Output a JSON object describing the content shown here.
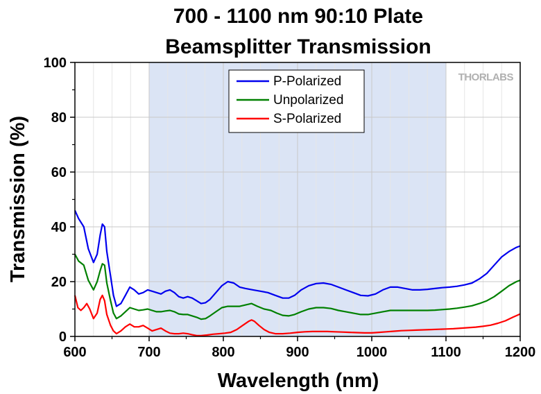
{
  "chart_data": {
    "type": "line",
    "title_line1": "700 - 1100 nm 90:10 Plate",
    "title_line2": "Beamsplitter Transmission",
    "xlabel": "Wavelength (nm)",
    "ylabel": "Transmission (%)",
    "xlim": [
      600,
      1200
    ],
    "ylim": [
      0,
      100
    ],
    "xticks": [
      600,
      700,
      800,
      900,
      1000,
      1100,
      1200
    ],
    "yticks": [
      0,
      20,
      40,
      60,
      80,
      100
    ],
    "grid": true,
    "highlight_band": {
      "from": 700,
      "to": 1100,
      "color": "#dbe4f5"
    },
    "legend_position": "top-center",
    "watermark": "THORLABS",
    "series": [
      {
        "name": "P-Polarized",
        "color": "#0000ee",
        "points": [
          [
            600,
            46
          ],
          [
            605,
            43
          ],
          [
            612,
            40
          ],
          [
            618,
            32
          ],
          [
            625,
            27
          ],
          [
            630,
            30
          ],
          [
            634,
            37
          ],
          [
            637,
            41
          ],
          [
            640,
            40
          ],
          [
            643,
            31
          ],
          [
            648,
            22
          ],
          [
            652,
            15
          ],
          [
            656,
            11
          ],
          [
            662,
            12
          ],
          [
            668,
            15
          ],
          [
            674,
            18
          ],
          [
            680,
            17
          ],
          [
            686,
            15.5
          ],
          [
            692,
            16
          ],
          [
            698,
            17
          ],
          [
            704,
            16.5
          ],
          [
            710,
            16
          ],
          [
            716,
            15.5
          ],
          [
            722,
            16.5
          ],
          [
            728,
            17
          ],
          [
            734,
            16
          ],
          [
            740,
            14.5
          ],
          [
            746,
            14
          ],
          [
            752,
            14.5
          ],
          [
            758,
            14
          ],
          [
            764,
            13
          ],
          [
            770,
            12
          ],
          [
            776,
            12.3
          ],
          [
            782,
            13.5
          ],
          [
            790,
            16
          ],
          [
            798,
            18.5
          ],
          [
            806,
            20
          ],
          [
            814,
            19.5
          ],
          [
            822,
            18
          ],
          [
            830,
            17.5
          ],
          [
            840,
            17
          ],
          [
            850,
            16.5
          ],
          [
            860,
            16
          ],
          [
            870,
            15
          ],
          [
            880,
            14
          ],
          [
            888,
            14
          ],
          [
            896,
            15
          ],
          [
            905,
            17
          ],
          [
            915,
            18.5
          ],
          [
            925,
            19.3
          ],
          [
            935,
            19.5
          ],
          [
            945,
            19
          ],
          [
            955,
            18
          ],
          [
            965,
            17
          ],
          [
            975,
            16
          ],
          [
            985,
            15
          ],
          [
            995,
            14.8
          ],
          [
            1005,
            15.5
          ],
          [
            1015,
            17
          ],
          [
            1025,
            18
          ],
          [
            1035,
            18
          ],
          [
            1045,
            17.5
          ],
          [
            1055,
            17
          ],
          [
            1065,
            17
          ],
          [
            1075,
            17.2
          ],
          [
            1085,
            17.5
          ],
          [
            1095,
            17.8
          ],
          [
            1105,
            18
          ],
          [
            1115,
            18.3
          ],
          [
            1125,
            18.8
          ],
          [
            1135,
            19.5
          ],
          [
            1145,
            21
          ],
          [
            1155,
            23
          ],
          [
            1165,
            26
          ],
          [
            1175,
            29
          ],
          [
            1185,
            31
          ],
          [
            1195,
            32.5
          ],
          [
            1200,
            33
          ]
        ]
      },
      {
        "name": "Unpolarized",
        "color": "#008000",
        "points": [
          [
            600,
            30
          ],
          [
            605,
            27.5
          ],
          [
            612,
            26
          ],
          [
            618,
            20.5
          ],
          [
            625,
            17
          ],
          [
            630,
            20
          ],
          [
            634,
            24
          ],
          [
            637,
            26.5
          ],
          [
            640,
            26
          ],
          [
            643,
            19.5
          ],
          [
            648,
            13
          ],
          [
            652,
            8.5
          ],
          [
            656,
            6.5
          ],
          [
            662,
            7.5
          ],
          [
            668,
            9
          ],
          [
            674,
            10.5
          ],
          [
            680,
            10
          ],
          [
            686,
            9.5
          ],
          [
            692,
            9.7
          ],
          [
            698,
            10
          ],
          [
            704,
            9.5
          ],
          [
            710,
            9
          ],
          [
            716,
            9
          ],
          [
            722,
            9.3
          ],
          [
            728,
            9.5
          ],
          [
            734,
            9
          ],
          [
            740,
            8.2
          ],
          [
            746,
            8
          ],
          [
            752,
            8
          ],
          [
            758,
            7.5
          ],
          [
            764,
            7
          ],
          [
            770,
            6.3
          ],
          [
            776,
            6.5
          ],
          [
            782,
            7.5
          ],
          [
            790,
            9
          ],
          [
            798,
            10.5
          ],
          [
            806,
            11
          ],
          [
            814,
            11
          ],
          [
            822,
            11
          ],
          [
            830,
            11.5
          ],
          [
            838,
            12
          ],
          [
            846,
            11
          ],
          [
            855,
            10
          ],
          [
            864,
            9.5
          ],
          [
            872,
            8.5
          ],
          [
            880,
            7.7
          ],
          [
            888,
            7.5
          ],
          [
            896,
            8
          ],
          [
            905,
            9
          ],
          [
            915,
            10
          ],
          [
            925,
            10.5
          ],
          [
            935,
            10.5
          ],
          [
            945,
            10.2
          ],
          [
            955,
            9.5
          ],
          [
            965,
            9
          ],
          [
            975,
            8.5
          ],
          [
            985,
            8
          ],
          [
            995,
            8
          ],
          [
            1005,
            8.5
          ],
          [
            1015,
            9
          ],
          [
            1025,
            9.5
          ],
          [
            1035,
            9.5
          ],
          [
            1045,
            9.5
          ],
          [
            1055,
            9.5
          ],
          [
            1065,
            9.5
          ],
          [
            1075,
            9.5
          ],
          [
            1085,
            9.6
          ],
          [
            1095,
            9.8
          ],
          [
            1105,
            10
          ],
          [
            1115,
            10.3
          ],
          [
            1125,
            10.7
          ],
          [
            1135,
            11.2
          ],
          [
            1145,
            12
          ],
          [
            1155,
            13
          ],
          [
            1165,
            14.5
          ],
          [
            1175,
            16.5
          ],
          [
            1185,
            18.5
          ],
          [
            1195,
            20
          ],
          [
            1200,
            20.5
          ]
        ]
      },
      {
        "name": "S-Polarized",
        "color": "#ff0000",
        "points": [
          [
            600,
            15
          ],
          [
            604,
            10.5
          ],
          [
            608,
            9.5
          ],
          [
            612,
            10.5
          ],
          [
            616,
            12
          ],
          [
            620,
            10
          ],
          [
            625,
            6.5
          ],
          [
            630,
            8.5
          ],
          [
            634,
            13.5
          ],
          [
            637,
            15
          ],
          [
            640,
            13
          ],
          [
            643,
            8
          ],
          [
            648,
            4
          ],
          [
            652,
            2
          ],
          [
            656,
            1
          ],
          [
            662,
            2
          ],
          [
            668,
            3.5
          ],
          [
            674,
            4.5
          ],
          [
            680,
            3.5
          ],
          [
            686,
            3.5
          ],
          [
            692,
            4
          ],
          [
            698,
            3
          ],
          [
            704,
            2
          ],
          [
            710,
            2.5
          ],
          [
            716,
            3
          ],
          [
            722,
            2
          ],
          [
            728,
            1.2
          ],
          [
            734,
            1
          ],
          [
            740,
            1
          ],
          [
            746,
            1.2
          ],
          [
            752,
            1
          ],
          [
            758,
            0.6
          ],
          [
            764,
            0.3
          ],
          [
            770,
            0.3
          ],
          [
            778,
            0.5
          ],
          [
            786,
            0.8
          ],
          [
            794,
            1
          ],
          [
            802,
            1.2
          ],
          [
            810,
            1.5
          ],
          [
            818,
            2.5
          ],
          [
            826,
            4
          ],
          [
            834,
            5.5
          ],
          [
            838,
            6
          ],
          [
            842,
            5.5
          ],
          [
            848,
            4
          ],
          [
            855,
            2.5
          ],
          [
            862,
            1.5
          ],
          [
            870,
            1
          ],
          [
            880,
            1
          ],
          [
            890,
            1.2
          ],
          [
            900,
            1.5
          ],
          [
            910,
            1.7
          ],
          [
            920,
            1.8
          ],
          [
            930,
            1.8
          ],
          [
            940,
            1.8
          ],
          [
            950,
            1.7
          ],
          [
            960,
            1.6
          ],
          [
            970,
            1.5
          ],
          [
            980,
            1.4
          ],
          [
            990,
            1.3
          ],
          [
            1000,
            1.3
          ],
          [
            1010,
            1.5
          ],
          [
            1020,
            1.7
          ],
          [
            1030,
            1.9
          ],
          [
            1040,
            2.1
          ],
          [
            1050,
            2.2
          ],
          [
            1060,
            2.3
          ],
          [
            1070,
            2.4
          ],
          [
            1080,
            2.5
          ],
          [
            1090,
            2.6
          ],
          [
            1100,
            2.7
          ],
          [
            1110,
            2.8
          ],
          [
            1120,
            3
          ],
          [
            1130,
            3.2
          ],
          [
            1140,
            3.4
          ],
          [
            1150,
            3.7
          ],
          [
            1160,
            4.1
          ],
          [
            1170,
            4.8
          ],
          [
            1180,
            5.7
          ],
          [
            1190,
            7
          ],
          [
            1200,
            8.2
          ]
        ]
      }
    ]
  }
}
